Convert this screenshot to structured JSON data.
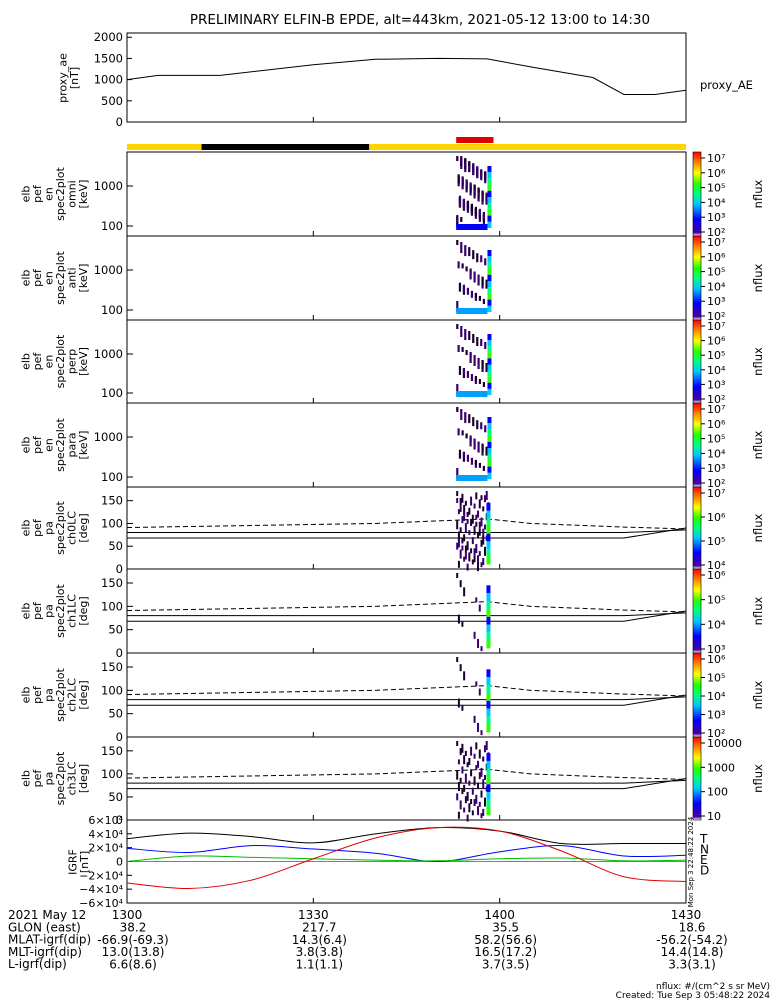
{
  "title": "PRELIMINARY ELFIN-B EPDE, alt=443km, 2021-05-12 13:00 to 14:30",
  "colors": {
    "yellow": "#ffd400",
    "black": "#000000",
    "red": "#e00000",
    "blue": "#0000ff",
    "green": "#00c000"
  },
  "ae_panel": {
    "ylabel_lines": [
      "proxy_ae",
      "[nT]"
    ],
    "yticks": [
      "2000",
      "1500",
      "1000",
      "500",
      "0"
    ],
    "legend": "proxy_AE"
  },
  "energy_panels": [
    {
      "ylabel_lines": [
        "elb",
        "pef",
        "en",
        "spec2plot",
        "omni",
        "[keV]"
      ],
      "yticks": [
        "1000",
        "100"
      ]
    },
    {
      "ylabel_lines": [
        "elb",
        "pef",
        "en",
        "spec2plot",
        "anti",
        "[keV]"
      ],
      "yticks": [
        "1000",
        "100"
      ]
    },
    {
      "ylabel_lines": [
        "elb",
        "pef",
        "en",
        "spec2plot",
        "perp",
        "[keV]"
      ],
      "yticks": [
        "1000",
        "100"
      ]
    },
    {
      "ylabel_lines": [
        "elb",
        "pef",
        "en",
        "spec2plot",
        "para",
        "[keV]"
      ],
      "yticks": [
        "1000",
        "100"
      ]
    }
  ],
  "pa_panels": [
    {
      "ylabel_lines": [
        "elb",
        "pef",
        "pa",
        "spec2plot",
        "ch0LC",
        "[deg]"
      ],
      "yticks": [
        "150",
        "100",
        "50",
        "0"
      ]
    },
    {
      "ylabel_lines": [
        "elb",
        "pef",
        "pa",
        "spec2plot",
        "ch1LC",
        "[deg]"
      ],
      "yticks": [
        "150",
        "100",
        "50",
        "0"
      ]
    },
    {
      "ylabel_lines": [
        "elb",
        "pef",
        "pa",
        "spec2plot",
        "ch2LC",
        "[deg]"
      ],
      "yticks": [
        "150",
        "100",
        "50",
        "0"
      ]
    },
    {
      "ylabel_lines": [
        "elb",
        "pef",
        "pa",
        "spec2plot",
        "ch3LC",
        "[deg]"
      ],
      "yticks": [
        "150",
        "100",
        "50",
        "0"
      ]
    }
  ],
  "colorbars": [
    {
      "unit": "nflux",
      "ticks": [
        "10⁷",
        "10⁶",
        "10⁵",
        "10⁴",
        "10³",
        "10²"
      ]
    },
    {
      "unit": "nflux",
      "ticks": [
        "10⁷",
        "10⁶",
        "10⁵",
        "10⁴",
        "10³",
        "10²"
      ]
    },
    {
      "unit": "nflux",
      "ticks": [
        "10⁷",
        "10⁶",
        "10⁵",
        "10⁴",
        "10³",
        "10²"
      ]
    },
    {
      "unit": "nflux",
      "ticks": [
        "10⁷",
        "10⁶",
        "10⁵",
        "10⁴",
        "10³",
        "10²"
      ]
    },
    {
      "unit": "nflux",
      "ticks": [
        "10⁷",
        "10⁶",
        "10⁵",
        "10⁴"
      ]
    },
    {
      "unit": "nflux",
      "ticks": [
        "10⁶",
        "10⁵",
        "10⁴",
        "10³"
      ]
    },
    {
      "unit": "nflux",
      "ticks": [
        "10⁶",
        "10⁵",
        "10⁴",
        "10³",
        "10²"
      ]
    },
    {
      "unit": "nflux",
      "ticks": [
        "10000",
        "1000",
        "100",
        "10"
      ]
    }
  ],
  "igrf_panel": {
    "ylabel_lines": [
      "IGRF",
      "[nT]"
    ],
    "yticks": [
      "6×10⁴",
      "4×10⁴",
      "2×10⁴",
      "0",
      "−2×10⁴",
      "−4×10⁴",
      "−6×10⁴"
    ],
    "legend": [
      "T",
      "N",
      "E",
      "D"
    ]
  },
  "side_note": [
    "Mon Sep  3 22:48:22 2024"
  ],
  "x_axis": {
    "ticks": [
      "1300",
      "1330",
      "1400",
      "1430"
    ],
    "row_labels": [
      "2021 May 12",
      "GLON (east)",
      "MLAT-igrf(dip)",
      "MLT-igrf(dip)",
      "L-igrf(dip)"
    ],
    "rows": [
      [
        "38.2",
        "217.7",
        "35.5",
        "18.6"
      ],
      [
        "-66.9(-69.3)",
        "14.3(6.4)",
        "58.2(56.6)",
        "-56.2(-54.2)"
      ],
      [
        "13.0(13.8)",
        "3.8(3.8)",
        "16.5(17.2)",
        "14.4(14.8)"
      ],
      [
        "6.6(8.6)",
        "1.1(1.1)",
        "3.7(3.5)",
        "3.3(3.1)"
      ]
    ]
  },
  "footer": [
    "nflux: #/(cm^2 s sr MeV)",
    "Created: Tue Sep  3 05:48:22 2024"
  ],
  "chart_data": {
    "type": "line",
    "x_unit": "UT minute (HHMM)",
    "xlim": [
      "13:00",
      "14:30"
    ],
    "proxy_ae": {
      "x": [
        "13:00",
        "13:05",
        "13:15",
        "13:30",
        "13:40",
        "13:50",
        "13:58",
        "14:05",
        "14:15",
        "14:20",
        "14:25",
        "14:30"
      ],
      "y": [
        1000,
        1100,
        1100,
        1350,
        1480,
        1500,
        1490,
        1300,
        1050,
        650,
        650,
        750
      ],
      "ylim": [
        0,
        2100
      ]
    },
    "sci_zones": [
      {
        "from": "13:00",
        "to": "13:12",
        "color": "yellow"
      },
      {
        "from": "13:12",
        "to": "13:39",
        "color": "black"
      },
      {
        "from": "13:39",
        "to": "14:30",
        "color": "yellow"
      }
    ],
    "red_bar": {
      "from": "13:53",
      "to": "13:59"
    },
    "igrf": {
      "ylim": [
        -60000,
        60000
      ],
      "series": [
        {
          "name": "T",
          "x": [
            "13:00",
            "13:10",
            "13:20",
            "13:30",
            "13:40",
            "13:50",
            "14:00",
            "14:10",
            "14:20",
            "14:30"
          ],
          "y": [
            33000,
            41000,
            36000,
            27000,
            40000,
            49000,
            44000,
            26000,
            26000,
            26000
          ]
        },
        {
          "name": "N",
          "x": [
            "13:00",
            "13:10",
            "13:20",
            "13:30",
            "13:40",
            "13:50",
            "14:00",
            "14:10",
            "14:20",
            "14:30"
          ],
          "y": [
            19000,
            13000,
            23000,
            18000,
            12000,
            0,
            14000,
            23000,
            8000,
            9000
          ]
        },
        {
          "name": "E",
          "x": [
            "13:00",
            "13:10",
            "13:20",
            "13:30",
            "13:40",
            "13:50",
            "14:00",
            "14:10",
            "14:20",
            "14:30"
          ],
          "y": [
            0,
            8000,
            6000,
            4000,
            2000,
            1000,
            4000,
            5000,
            1000,
            2000
          ]
        },
        {
          "name": "D",
          "x": [
            "13:00",
            "13:10",
            "13:20",
            "13:30",
            "13:40",
            "13:50",
            "14:00",
            "14:10",
            "14:20",
            "14:30"
          ],
          "y": [
            -31000,
            -39000,
            -27000,
            4000,
            34000,
            49000,
            44000,
            15000,
            -22000,
            -29000
          ]
        }
      ]
    }
  }
}
